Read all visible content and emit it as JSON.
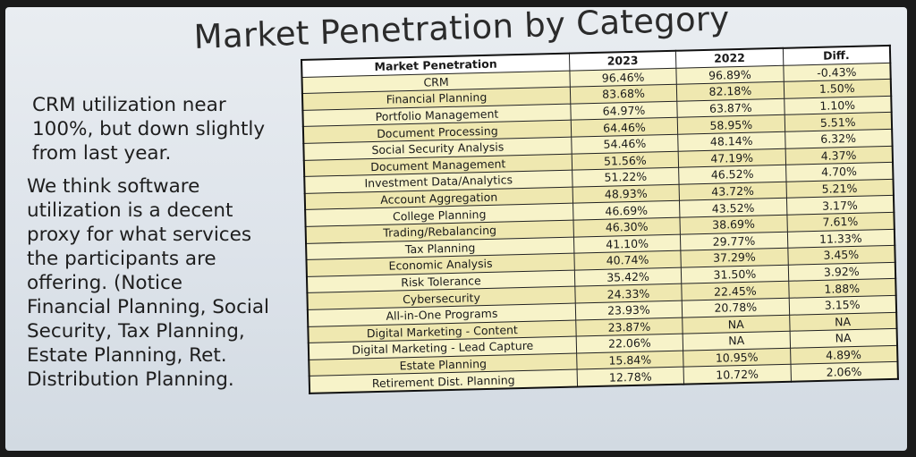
{
  "slide": {
    "title": "Market Penetration by Category",
    "bullets": [
      "CRM utilization near\n100%, but down slightly\nfrom last year.",
      "We think software\nutilization is a decent\nproxy for what services\nthe participants are\noffering.  (Notice\nFinancial Planning, Social\nSecurity, Tax Planning,\nEstate Planning, Ret.\nDistribution Planning."
    ]
  },
  "table": {
    "headers": [
      "Market Penetration",
      "2023",
      "2022",
      "Diff."
    ],
    "rows": [
      [
        "CRM",
        "96.46%",
        "96.89%",
        "-0.43%"
      ],
      [
        "Financial Planning",
        "83.68%",
        "82.18%",
        "1.50%"
      ],
      [
        "Portfolio Management",
        "64.97%",
        "63.87%",
        "1.10%"
      ],
      [
        "Document Processing",
        "64.46%",
        "58.95%",
        "5.51%"
      ],
      [
        "Social Security Analysis",
        "54.46%",
        "48.14%",
        "6.32%"
      ],
      [
        "Document Management",
        "51.56%",
        "47.19%",
        "4.37%"
      ],
      [
        "Investment Data/Analytics",
        "51.22%",
        "46.52%",
        "4.70%"
      ],
      [
        "Account Aggregation",
        "48.93%",
        "43.72%",
        "5.21%"
      ],
      [
        "College Planning",
        "46.69%",
        "43.52%",
        "3.17%"
      ],
      [
        "Trading/Rebalancing",
        "46.30%",
        "38.69%",
        "7.61%"
      ],
      [
        "Tax Planning",
        "41.10%",
        "29.77%",
        "11.33%"
      ],
      [
        "Economic Analysis",
        "40.74%",
        "37.29%",
        "3.45%"
      ],
      [
        "Risk Tolerance",
        "35.42%",
        "31.50%",
        "3.92%"
      ],
      [
        "Cybersecurity",
        "24.33%",
        "22.45%",
        "1.88%"
      ],
      [
        "All-in-One Programs",
        "23.93%",
        "20.78%",
        "3.15%"
      ],
      [
        "Digital Marketing - Content",
        "23.87%",
        "NA",
        "NA"
      ],
      [
        "Digital Marketing - Lead Capture",
        "22.06%",
        "NA",
        "NA"
      ],
      [
        "Estate Planning",
        "15.84%",
        "10.95%",
        "4.89%"
      ],
      [
        "Retirement Dist. Planning",
        "12.78%",
        "10.72%",
        "2.06%"
      ]
    ]
  }
}
